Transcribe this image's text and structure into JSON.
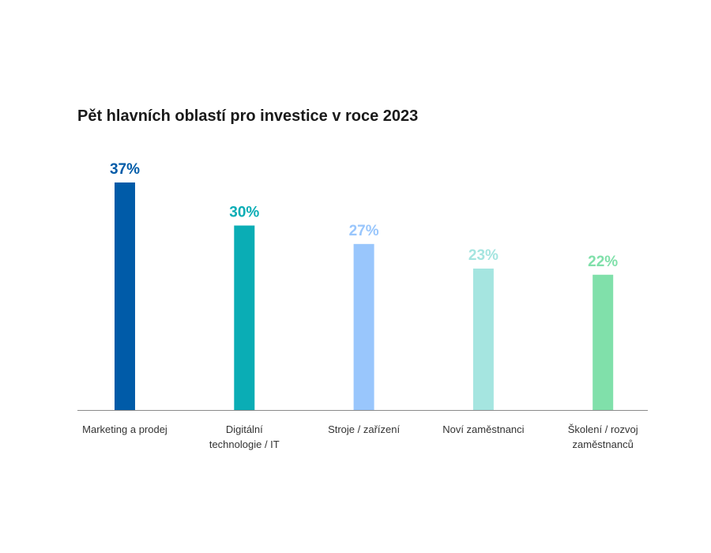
{
  "chart_data": {
    "type": "bar",
    "title": "Pět hlavních oblastí pro investice v roce 2023",
    "categories": [
      "Marketing a prodej",
      "Digitální technologie / IT",
      "Stroje / zařízení",
      "Noví zaměstnanci",
      "Školení / rozvoj zaměstnanců"
    ],
    "category_lines": [
      [
        "Marketing a prodej"
      ],
      [
        "Digitální",
        "technologie / IT"
      ],
      [
        "Stroje / zařízení"
      ],
      [
        "Noví zaměstnanci"
      ],
      [
        "Školení / rozvoj",
        "zaměstnanců"
      ]
    ],
    "values": [
      37,
      30,
      27,
      23,
      22
    ],
    "value_labels": [
      "37%",
      "30%",
      "27%",
      "23%",
      "22%"
    ],
    "colors": [
      "#005ba8",
      "#0aadb5",
      "#99c6fc",
      "#a5e5e0",
      "#80e0aa"
    ],
    "xlabel": "",
    "ylabel": "",
    "ylim": [
      0,
      37
    ],
    "grid": false,
    "legend": "none"
  }
}
